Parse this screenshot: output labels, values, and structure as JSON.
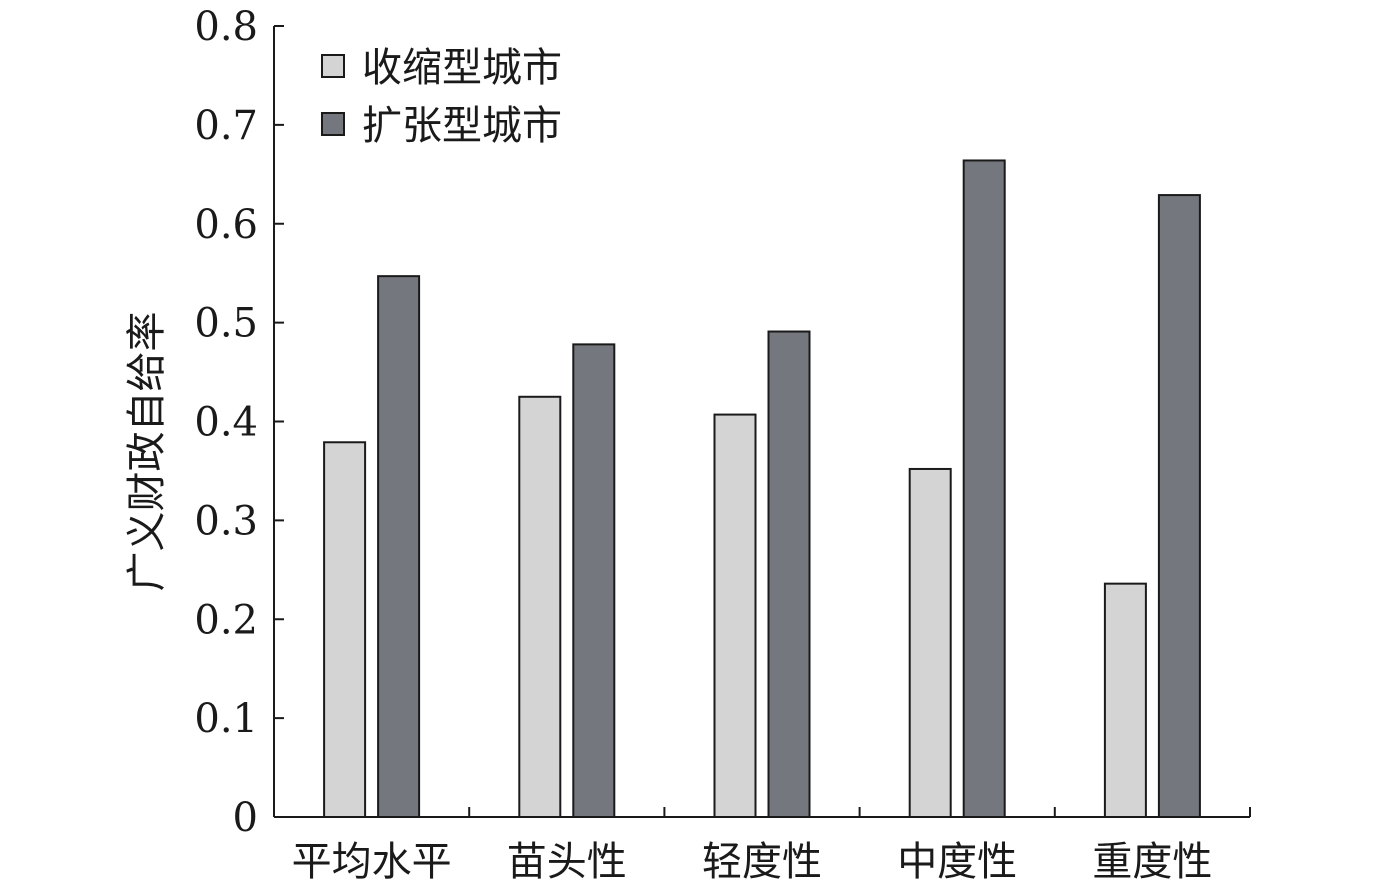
{
  "chart_data": {
    "type": "bar",
    "title": "",
    "xlabel": "",
    "ylabel": "广义财政自给率",
    "categories": [
      "平均水平",
      "苗头性",
      "轻度性",
      "中度性",
      "重度性"
    ],
    "series": [
      {
        "name": "收缩型城市",
        "values": [
          0.379,
          0.425,
          0.407,
          0.352,
          0.236
        ],
        "color": "#d4d4d4"
      },
      {
        "name": "扩张型城市",
        "values": [
          0.547,
          0.478,
          0.491,
          0.664,
          0.629
        ],
        "color": "#74787e"
      }
    ],
    "ylim": [
      0,
      0.8
    ],
    "yticks": [
      "0",
      "0.1",
      "0.2",
      "0.3",
      "0.4",
      "0.5",
      "0.6",
      "0.7",
      "0.8"
    ],
    "grid": false,
    "legend_position": "top-left"
  }
}
